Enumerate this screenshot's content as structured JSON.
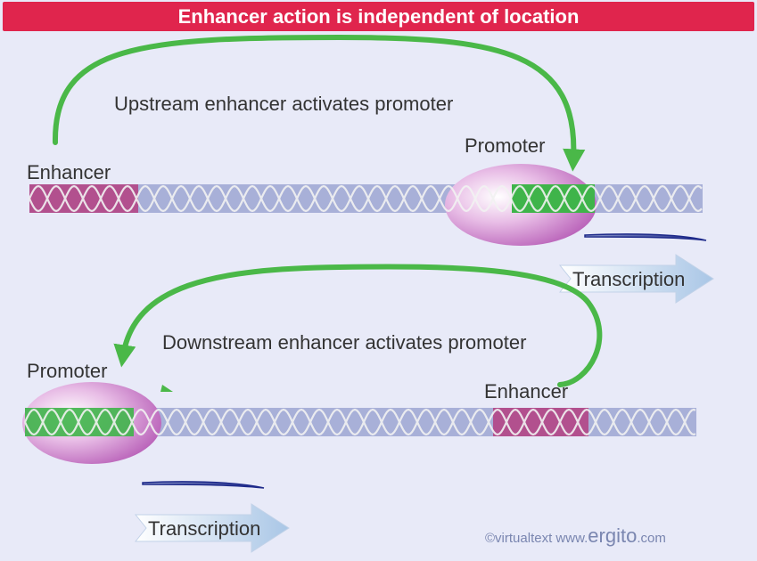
{
  "title": "Enhancer action is independent of location",
  "panels": {
    "upstream": {
      "caption": "Upstream enhancer activates promoter",
      "enhancer_label": "Enhancer",
      "promoter_label": "Promoter",
      "transcription_label": "Transcription"
    },
    "downstream": {
      "caption": "Downstream enhancer activates promoter",
      "enhancer_label": "Enhancer",
      "promoter_label": "Promoter",
      "transcription_label": "Transcription"
    }
  },
  "credit": {
    "copyright": "©virtualtext",
    "www": "www.",
    "brand": "ergito",
    "tld": ".com"
  },
  "colors": {
    "title_bar": "#e0254d",
    "dna": "#a8b0d8",
    "enhancer": "#b2508e",
    "promoter": "#3fb44a",
    "arrow": "#4ab848",
    "polymerase": "#d9a0d6",
    "rna": "#1e2a8a",
    "transcription_arrow": "#b8d6f0"
  }
}
